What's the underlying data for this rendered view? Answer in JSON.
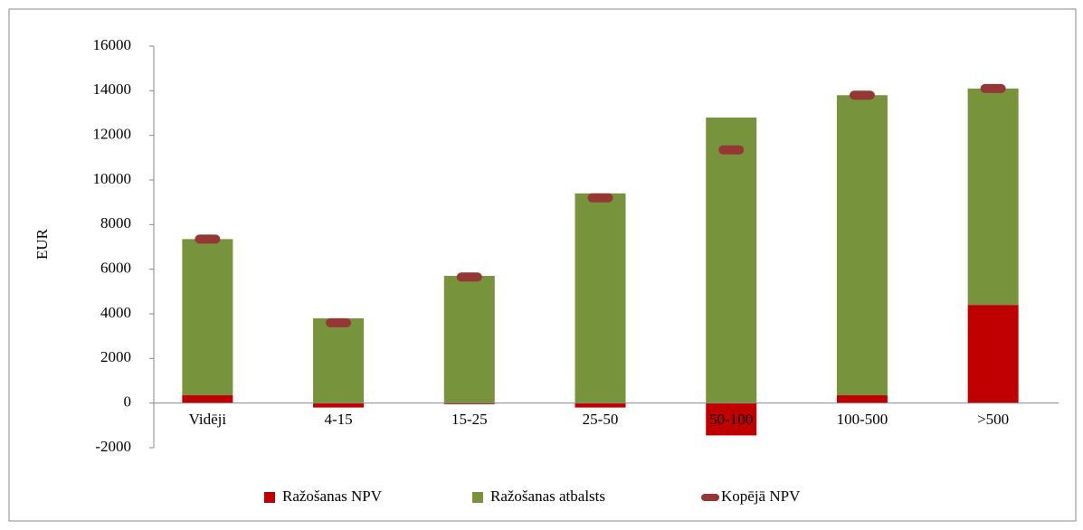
{
  "chart_data": {
    "type": "stacked_bar",
    "y_label": "EUR",
    "categories": [
      "Vidēji",
      "4-15",
      "15-25",
      "25-50",
      "50-100",
      "100-500",
      ">500"
    ],
    "series": [
      {
        "name": "Ražošanas NPV",
        "color": "#c00000",
        "values": [
          350,
          -200,
          -50,
          -200,
          -1450,
          350,
          4400
        ]
      },
      {
        "name": "Ražošanas atbalsts",
        "color": "#77933c",
        "values": [
          7000,
          3800,
          5700,
          9400,
          12800,
          13450,
          9700
        ]
      },
      {
        "name": "Kopējā NPV",
        "color": "#953735",
        "type": "marker",
        "values": [
          7350,
          3600,
          5650,
          9200,
          11350,
          13800,
          14100
        ]
      }
    ],
    "ylim": [
      -2000,
      16000
    ],
    "yticks": [
      -2000,
      0,
      2000,
      4000,
      6000,
      8000,
      10000,
      12000,
      14000,
      16000
    ],
    "grid": false,
    "legend": "bottom"
  }
}
